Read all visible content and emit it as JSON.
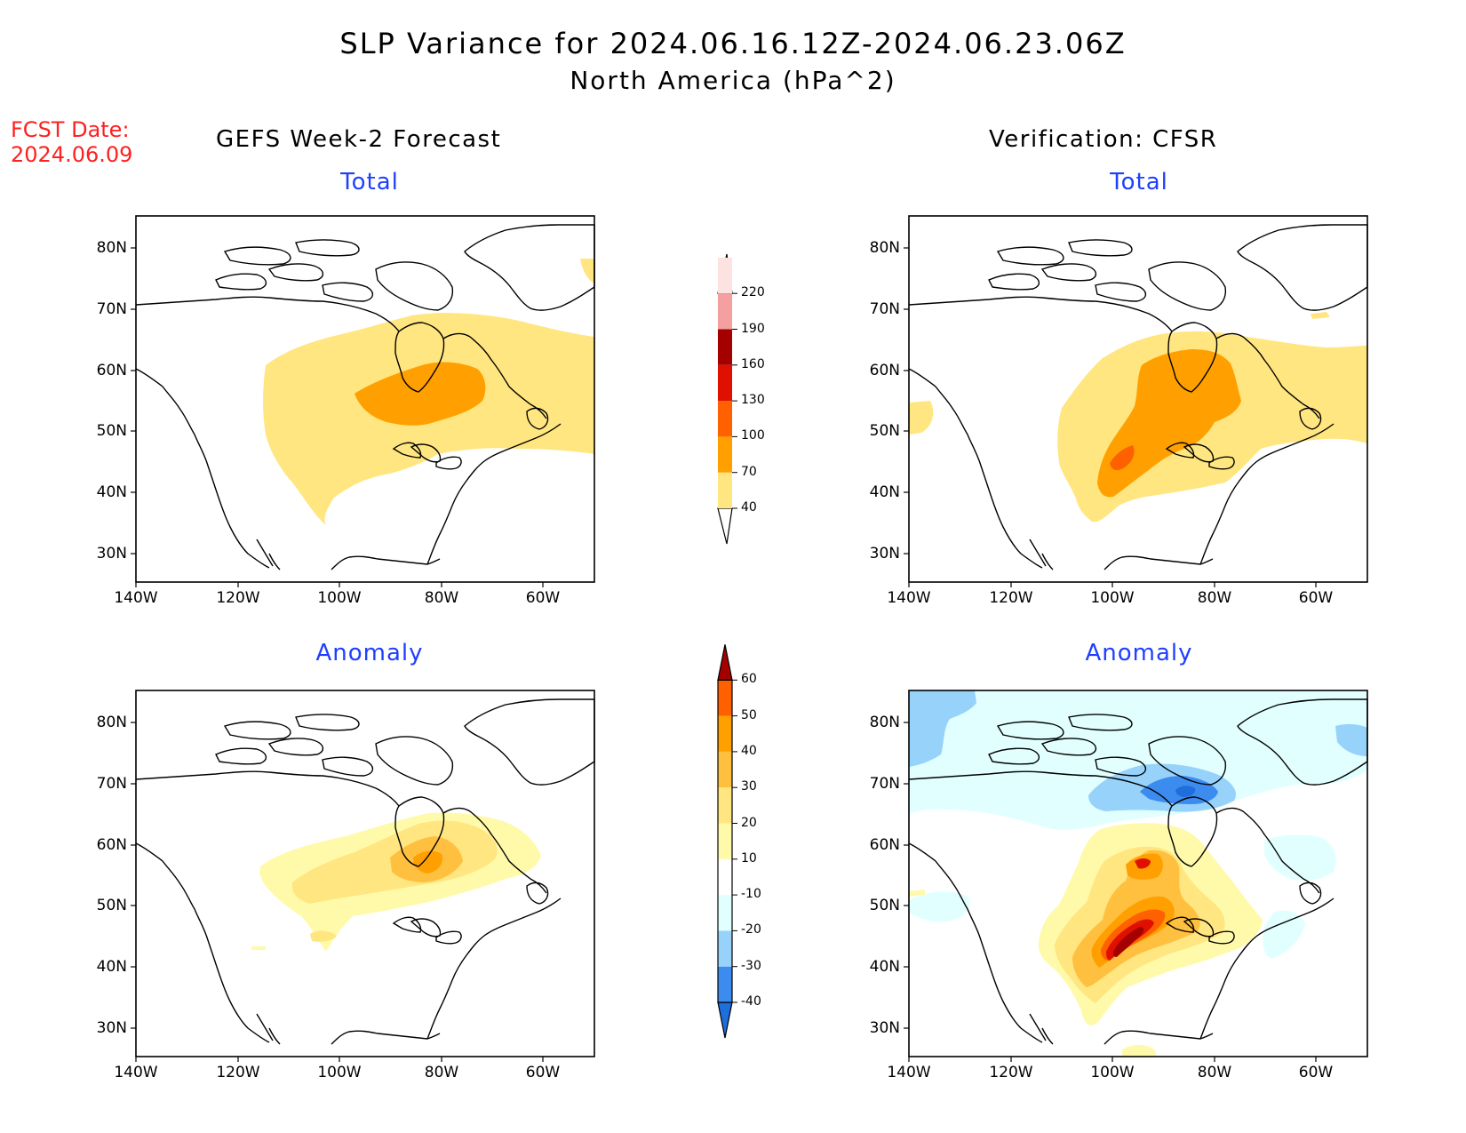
{
  "header": {
    "title_line1": "SLP Variance for 2024.06.16.12Z-2024.06.23.06Z",
    "title_line2": "North America (hPa^2)",
    "fcst_label": "FCST Date:",
    "fcst_value": "2024.06.09"
  },
  "columns": {
    "left": "GEFS Week-2 Forecast",
    "right": "Verification: CFSR"
  },
  "panels": {
    "total_label": "Total",
    "anomaly_label": "Anomaly",
    "lat_ticks": [
      "80N",
      "70N",
      "60N",
      "50N",
      "40N",
      "30N"
    ],
    "lon_ticks": [
      "140W",
      "120W",
      "100W",
      "80W",
      "60W"
    ]
  },
  "colorbars": {
    "total": {
      "levels": [
        "40",
        "70",
        "100",
        "130",
        "160",
        "190",
        "220"
      ],
      "colors": [
        "#ffe680",
        "#ffa000",
        "#ff6000",
        "#e01000",
        "#a50000",
        "#f4a0a0",
        "#fde2e2"
      ]
    },
    "anomaly": {
      "levels": [
        "-40",
        "-30",
        "-20",
        "-10",
        "10",
        "20",
        "30",
        "40",
        "50",
        "60"
      ],
      "colors": [
        "#1e6edc",
        "#3c8cf0",
        "#96d2fa",
        "#e1ffff",
        "#ffffff",
        "#fffaaa",
        "#ffe680",
        "#ffc040",
        "#ffa000",
        "#ff6000",
        "#e01000",
        "#a50000"
      ]
    }
  }
}
